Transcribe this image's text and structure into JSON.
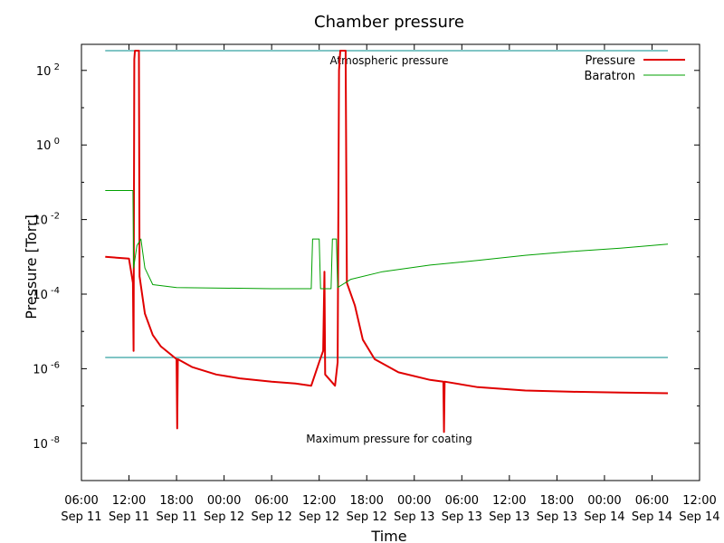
{
  "chart_data": {
    "type": "line",
    "title": "Chamber pressure",
    "xlabel": "Time",
    "ylabel": "Pressure [Torr]",
    "yscale": "log",
    "xlim": [
      "2011-09-11T06:00",
      "2011-09-14T12:00"
    ],
    "ylim": [
      1e-09,
      500
    ],
    "grid": false,
    "legend_position": "top-right",
    "x_ticks": [
      {
        "time": "06:00",
        "date": "Sep 11"
      },
      {
        "time": "12:00",
        "date": "Sep 11"
      },
      {
        "time": "18:00",
        "date": "Sep 11"
      },
      {
        "time": "00:00",
        "date": "Sep 12"
      },
      {
        "time": "06:00",
        "date": "Sep 12"
      },
      {
        "time": "12:00",
        "date": "Sep 12"
      },
      {
        "time": "18:00",
        "date": "Sep 12"
      },
      {
        "time": "00:00",
        "date": "Sep 13"
      },
      {
        "time": "06:00",
        "date": "Sep 13"
      },
      {
        "time": "12:00",
        "date": "Sep 13"
      },
      {
        "time": "18:00",
        "date": "Sep 13"
      },
      {
        "time": "00:00",
        "date": "Sep 14"
      },
      {
        "time": "06:00",
        "date": "Sep 14"
      },
      {
        "time": "12:00",
        "date": "Sep 14"
      }
    ],
    "y_ticks": [
      {
        "base": "10",
        "exp": "2",
        "value": 100
      },
      {
        "base": "10",
        "exp": "0",
        "value": 1
      },
      {
        "base": "10",
        "exp": "-2",
        "value": 0.01
      },
      {
        "base": "10",
        "exp": "-4",
        "value": 0.0001
      },
      {
        "base": "10",
        "exp": "-6",
        "value": 1e-06
      },
      {
        "base": "10",
        "exp": "-8",
        "value": 1e-08
      }
    ],
    "reference_lines": [
      {
        "label": "Atmospheric pressure",
        "value": 760,
        "color": "#008b8b"
      },
      {
        "label": "Maximum pressure for coating",
        "value": 2e-06,
        "color": "#008b8b"
      }
    ],
    "series": [
      {
        "name": "Pressure",
        "color": "#e00000",
        "points": [
          [
            "2011-09-11T09:00",
            0.001
          ],
          [
            "2011-09-11T12:00",
            0.0009
          ],
          [
            "2011-09-11T12:30",
            0.0002
          ],
          [
            "2011-09-11T12:35",
            3e-06
          ],
          [
            "2011-09-11T12:40",
            200
          ],
          [
            "2011-09-11T12:45",
            760
          ],
          [
            "2011-09-11T13:15",
            760
          ],
          [
            "2011-09-11T13:20",
            0.0003
          ],
          [
            "2011-09-11T14:00",
            3e-05
          ],
          [
            "2011-09-11T15:00",
            8e-06
          ],
          [
            "2011-09-11T16:00",
            4e-06
          ],
          [
            "2011-09-11T18:00",
            1.8e-06
          ],
          [
            "2011-09-11T18:05",
            2.5e-08
          ],
          [
            "2011-09-11T18:10",
            1.8e-06
          ],
          [
            "2011-09-11T20:00",
            1.1e-06
          ],
          [
            "2011-09-11T23:00",
            7e-07
          ],
          [
            "2011-09-12T02:00",
            5.5e-07
          ],
          [
            "2011-09-12T06:00",
            4.5e-07
          ],
          [
            "2011-09-12T09:00",
            4e-07
          ],
          [
            "2011-09-12T11:00",
            3.5e-07
          ],
          [
            "2011-09-12T12:00",
            1.5e-06
          ],
          [
            "2011-09-12T12:30",
            3e-06
          ],
          [
            "2011-09-12T12:40",
            0.0004
          ],
          [
            "2011-09-12T12:45",
            7e-07
          ],
          [
            "2011-09-12T14:00",
            3.5e-07
          ],
          [
            "2011-09-12T14:20",
            1.5e-06
          ],
          [
            "2011-09-12T14:30",
            100
          ],
          [
            "2011-09-12T14:40",
            760
          ],
          [
            "2011-09-12T15:20",
            760
          ],
          [
            "2011-09-12T15:30",
            0.0002
          ],
          [
            "2011-09-12T16:30",
            5e-05
          ],
          [
            "2011-09-12T17:30",
            6e-06
          ],
          [
            "2011-09-12T19:00",
            1.8e-06
          ],
          [
            "2011-09-12T22:00",
            8e-07
          ],
          [
            "2011-09-13T02:00",
            5e-07
          ],
          [
            "2011-09-13T03:40",
            4.5e-07
          ],
          [
            "2011-09-13T03:45",
            2e-08
          ],
          [
            "2011-09-13T03:50",
            4.5e-07
          ],
          [
            "2011-09-13T08:00",
            3.2e-07
          ],
          [
            "2011-09-13T14:00",
            2.6e-07
          ],
          [
            "2011-09-13T20:00",
            2.4e-07
          ],
          [
            "2011-09-14T02:00",
            2.3e-07
          ],
          [
            "2011-09-14T08:00",
            2.2e-07
          ]
        ]
      },
      {
        "name": "Baratron",
        "color": "#00a000",
        "points": [
          [
            "2011-09-11T09:00",
            0.06
          ],
          [
            "2011-09-11T12:30",
            0.06
          ],
          [
            "2011-09-11T12:35",
            0.0005
          ],
          [
            "2011-09-11T13:00",
            0.002
          ],
          [
            "2011-09-11T13:30",
            0.003
          ],
          [
            "2011-09-11T14:00",
            0.0005
          ],
          [
            "2011-09-11T15:00",
            0.00018
          ],
          [
            "2011-09-11T18:00",
            0.00015
          ],
          [
            "2011-09-12T06:00",
            0.00014
          ],
          [
            "2011-09-12T11:00",
            0.00014
          ],
          [
            "2011-09-12T11:10",
            0.003
          ],
          [
            "2011-09-12T12:00",
            0.003
          ],
          [
            "2011-09-12T12:10",
            0.00014
          ],
          [
            "2011-09-12T13:30",
            0.00014
          ],
          [
            "2011-09-12T13:40",
            0.003
          ],
          [
            "2011-09-12T14:10",
            0.003
          ],
          [
            "2011-09-12T14:20",
            0.00015
          ],
          [
            "2011-09-12T16:00",
            0.00025
          ],
          [
            "2011-09-12T20:00",
            0.0004
          ],
          [
            "2011-09-13T02:00",
            0.0006
          ],
          [
            "2011-09-13T08:00",
            0.0008
          ],
          [
            "2011-09-13T14:00",
            0.0011
          ],
          [
            "2011-09-13T20:00",
            0.0014
          ],
          [
            "2011-09-14T02:00",
            0.0017
          ],
          [
            "2011-09-14T08:00",
            0.0022
          ]
        ]
      }
    ]
  }
}
